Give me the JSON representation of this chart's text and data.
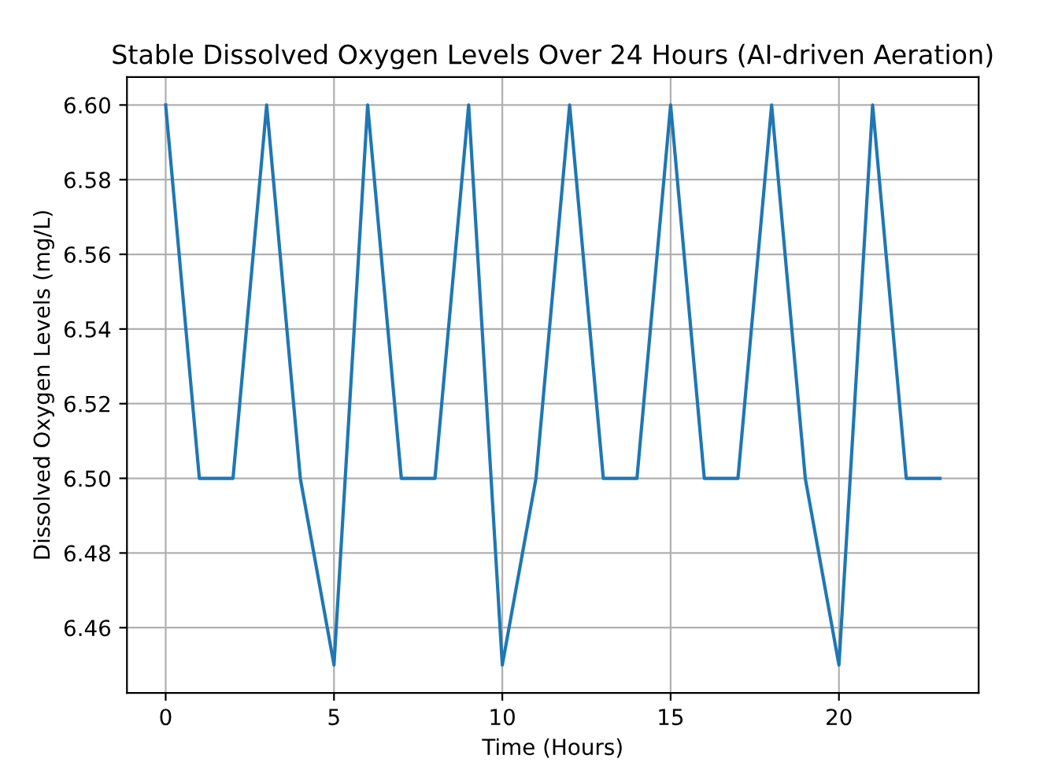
{
  "chart_data": {
    "type": "line",
    "title": "Stable Dissolved Oxygen Levels Over 24 Hours (AI-driven Aeration)",
    "xlabel": "Time (Hours)",
    "ylabel": "Dissolved Oxygen Levels (mg/L)",
    "x": [
      0,
      1,
      2,
      3,
      4,
      5,
      6,
      7,
      8,
      9,
      10,
      11,
      12,
      13,
      14,
      15,
      16,
      17,
      18,
      19,
      20,
      21,
      22,
      23
    ],
    "series": [
      {
        "color": "#1f77b4",
        "values": [
          6.6,
          6.5,
          6.5,
          6.6,
          6.5,
          6.45,
          6.6,
          6.5,
          6.5,
          6.6,
          6.45,
          6.5,
          6.6,
          6.5,
          6.5,
          6.6,
          6.5,
          6.5,
          6.6,
          6.5,
          6.45,
          6.6,
          6.5,
          6.5
        ]
      }
    ],
    "xlim": [
      -1.15,
      24.15
    ],
    "ylim": [
      6.4425,
      6.6075
    ],
    "xticks": [
      0,
      5,
      10,
      15,
      20
    ],
    "yticks": [
      {
        "value": 6.46,
        "label": "6.46"
      },
      {
        "value": 6.48,
        "label": "6.48"
      },
      {
        "value": 6.5,
        "label": "6.50"
      },
      {
        "value": 6.52,
        "label": "6.52"
      },
      {
        "value": 6.54,
        "label": "6.54"
      },
      {
        "value": 6.56,
        "label": "6.56"
      },
      {
        "value": 6.58,
        "label": "6.58"
      },
      {
        "value": 6.6,
        "label": "6.60"
      }
    ],
    "grid": true,
    "marker": "none",
    "line_style": "solid"
  }
}
